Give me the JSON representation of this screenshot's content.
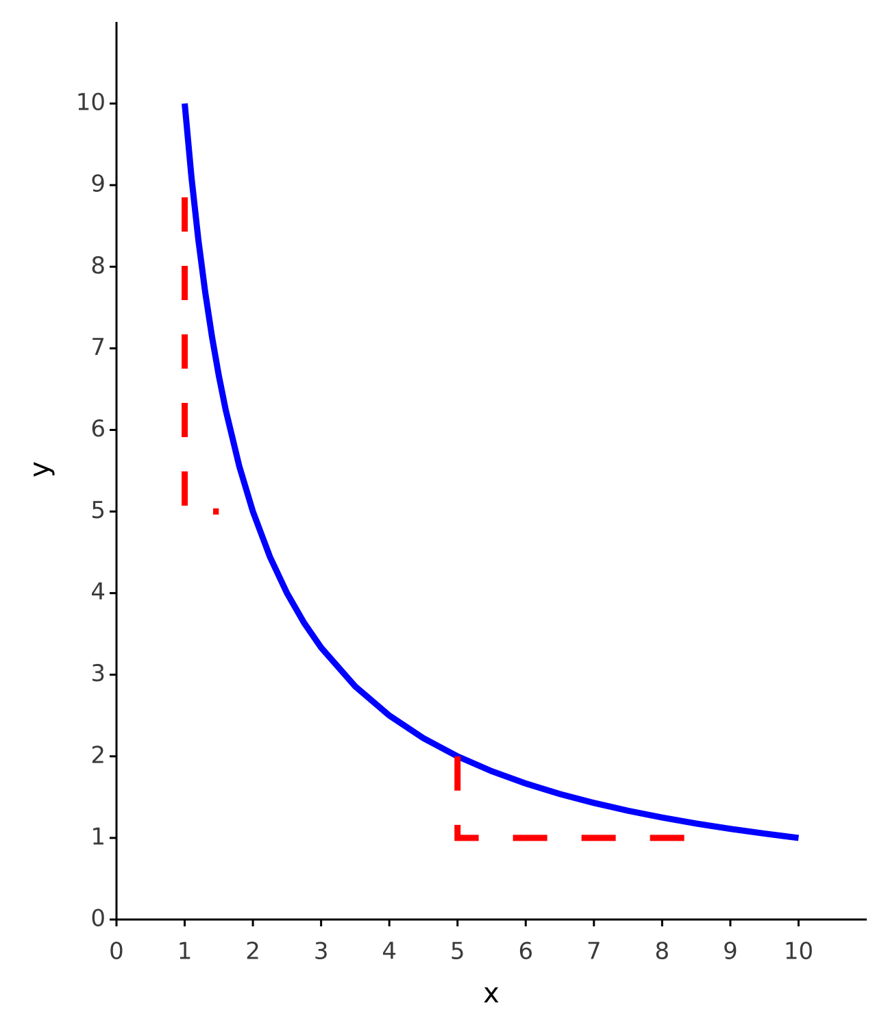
{
  "chart_data": {
    "type": "line",
    "x_label": "x",
    "y_label": "y",
    "xlim": [
      0,
      11
    ],
    "ylim": [
      0,
      11
    ],
    "xticks": [
      0,
      1,
      2,
      3,
      4,
      5,
      6,
      7,
      8,
      9,
      10
    ],
    "yticks": [
      0,
      1,
      2,
      3,
      4,
      5,
      6,
      7,
      8,
      9,
      10
    ],
    "series": [
      {
        "color": "#0000ff",
        "line_style": "solid",
        "x": [
          1,
          1.1,
          1.2,
          1.3,
          1.4,
          1.5,
          1.6,
          1.8,
          2,
          2.25,
          2.5,
          2.75,
          3,
          3.5,
          4,
          4.5,
          5,
          5.5,
          6,
          6.5,
          7,
          7.5,
          8,
          8.5,
          9,
          9.5,
          10
        ],
        "values": [
          10,
          9.091,
          8.333,
          7.692,
          7.143,
          6.667,
          6.25,
          5.556,
          5,
          4.444,
          4,
          3.636,
          3.333,
          2.857,
          2.5,
          2.222,
          2,
          1.818,
          1.667,
          1.538,
          1.429,
          1.333,
          1.25,
          1.176,
          1.111,
          1.053,
          1
        ]
      },
      {
        "color": "#ff0000",
        "line_style": "dashed",
        "x": [
          1,
          1,
          1.5
        ],
        "values": [
          8.85,
          5,
          5
        ]
      },
      {
        "color": "#ff0000",
        "line_style": "dashed",
        "x": [
          5,
          5,
          8.6
        ],
        "values": [
          2,
          1,
          1
        ]
      }
    ]
  }
}
